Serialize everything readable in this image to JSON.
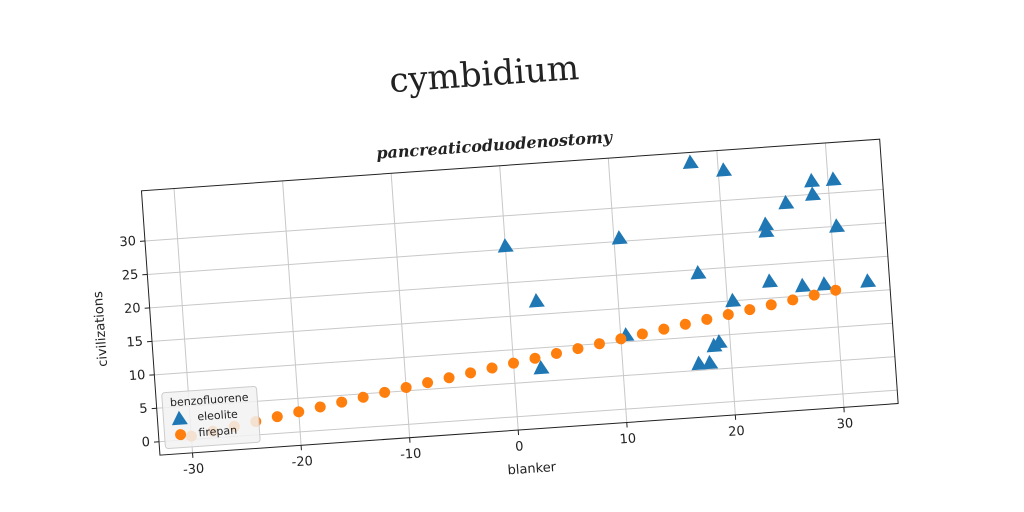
{
  "chart_data": {
    "type": "scatter",
    "title": "cymbidium",
    "subtitle": "pancreaticoduodenostomy",
    "x_label": "blanker",
    "y_label": "civilizations",
    "legend_title": "benzofluorene",
    "legend_position": "lower left",
    "grid": true,
    "xlim": [
      -33,
      35
    ],
    "ylim": [
      -2,
      37.5
    ],
    "xticks": [
      -30,
      -20,
      -10,
      0,
      10,
      20,
      30
    ],
    "yticks": [
      0,
      5,
      10,
      15,
      20,
      25,
      30
    ],
    "series": [
      {
        "name": "eleolite",
        "color": "#1f77b4",
        "marker": "triangle",
        "x": [
          0,
          2.5,
          2.5,
          10.5,
          17.5,
          20.5,
          28.5,
          30.5,
          26,
          28.5,
          24,
          24,
          30.5,
          17.5,
          24,
          27,
          29,
          33,
          20.5,
          18,
          17,
          18.5,
          19,
          10.5
        ],
        "values": [
          25.5,
          17,
          7,
          25.5,
          36,
          34.5,
          32,
          32,
          29,
          30,
          26,
          25,
          25,
          19.5,
          17.5,
          16.5,
          16.5,
          16.5,
          15,
          6,
          6,
          8.5,
          9,
          11
        ]
      },
      {
        "name": "firepan",
        "color": "#ff7f0e",
        "marker": "circle",
        "x": [
          -30,
          -28,
          -26,
          -24,
          -22,
          -20,
          -18,
          -16,
          -14,
          -12,
          -10,
          -8,
          -6,
          -4,
          -2,
          0,
          2,
          4,
          6,
          8,
          10,
          12,
          14,
          16,
          18,
          20,
          22,
          24,
          26,
          28,
          30
        ],
        "values": [
          0.5,
          1,
          1.5,
          2,
          2.5,
          3,
          3.5,
          4,
          4.5,
          5,
          5.5,
          6,
          6.5,
          7,
          7.5,
          8,
          8.5,
          9,
          9.5,
          10,
          10.5,
          11,
          11.5,
          12,
          12.5,
          13,
          13.5,
          14,
          14.5,
          15,
          15.5
        ]
      }
    ]
  }
}
